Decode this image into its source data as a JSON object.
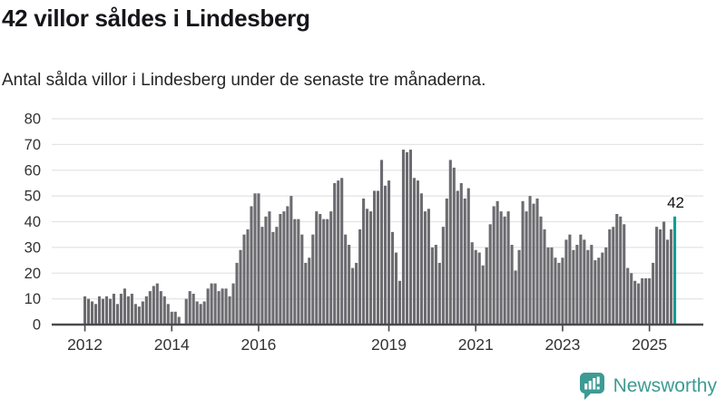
{
  "header": {
    "title": "42 villor såldes i Lindesberg",
    "subtitle": "Antal sålda villor i Lindesberg under de senaste tre månaderna."
  },
  "chart_data": {
    "type": "bar",
    "title": "42 villor såldes i Lindesberg",
    "subtitle": "Antal sålda villor i Lindesberg under de senaste tre månaderna.",
    "ylim": [
      0,
      80
    ],
    "yticks": [
      0,
      10,
      20,
      30,
      40,
      50,
      60,
      70,
      80
    ],
    "grid": true,
    "x_tick_labels": [
      {
        "label": "2012",
        "index": 0
      },
      {
        "label": "2014",
        "index": 24
      },
      {
        "label": "2016",
        "index": 48
      },
      {
        "label": "2019",
        "index": 84
      },
      {
        "label": "2021",
        "index": 108
      },
      {
        "label": "2023",
        "index": 132
      },
      {
        "label": "2025",
        "index": 156
      }
    ],
    "values": [
      11,
      10,
      9,
      8,
      11,
      10,
      11,
      10,
      12,
      8,
      12,
      14,
      11,
      12,
      8,
      7,
      9,
      11,
      13,
      15,
      16,
      13,
      11,
      8,
      5,
      5,
      3,
      0,
      10,
      13,
      12,
      9,
      8,
      9,
      14,
      16,
      16,
      13,
      14,
      14,
      11,
      16,
      24,
      29,
      35,
      37,
      46,
      51,
      51,
      38,
      42,
      44,
      36,
      38,
      43,
      44,
      46,
      50,
      41,
      41,
      35,
      24,
      26,
      35,
      44,
      43,
      41,
      41,
      44,
      55,
      56,
      57,
      35,
      31,
      22,
      24,
      37,
      49,
      45,
      44,
      52,
      52,
      64,
      54,
      56,
      36,
      28,
      17,
      68,
      67,
      68,
      57,
      56,
      51,
      44,
      45,
      30,
      31,
      24,
      38,
      49,
      64,
      61,
      52,
      55,
      49,
      53,
      32,
      29,
      28,
      23,
      30,
      39,
      46,
      48,
      44,
      42,
      44,
      31,
      21,
      29,
      48,
      44,
      50,
      47,
      49,
      42,
      37,
      30,
      30,
      26,
      24,
      26,
      33,
      35,
      29,
      31,
      35,
      33,
      29,
      31,
      25,
      26,
      28,
      30,
      37,
      38,
      43,
      42,
      39,
      22,
      20,
      17,
      16,
      18,
      18,
      18,
      24,
      38,
      37,
      40,
      33,
      37,
      42
    ],
    "highlight": {
      "index": 163,
      "value": 42,
      "label": "42"
    }
  },
  "footer": {
    "brand": "Newsworthy"
  },
  "colors": {
    "bar": "#6b6b70",
    "highlight": "#0d9e96",
    "grid": "#e4e4e4",
    "axis": "#4a4a4a",
    "tick_text": "#333333",
    "annotation_text": "#111111",
    "brand": "#3d9b94"
  }
}
